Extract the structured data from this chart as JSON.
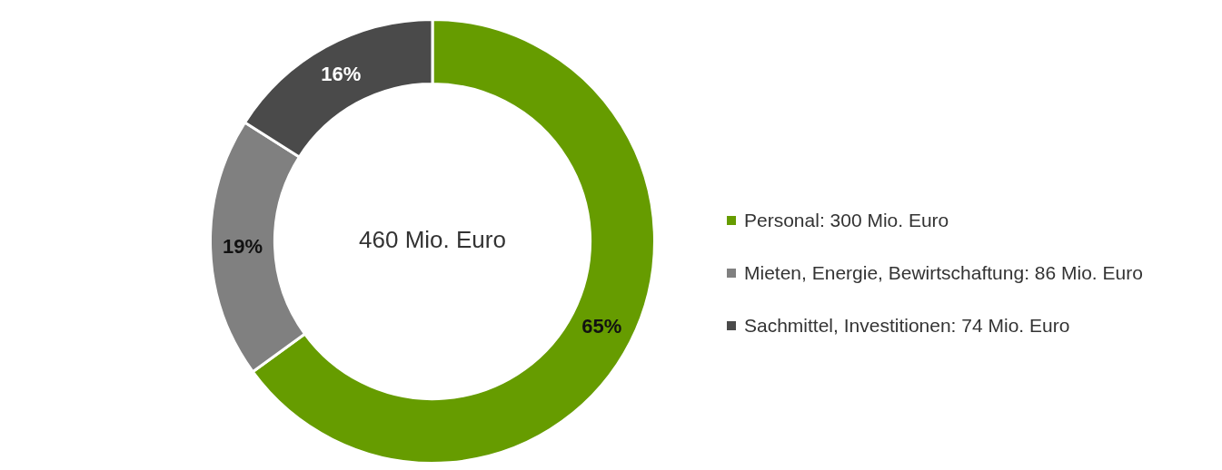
{
  "chart_data": {
    "type": "donut",
    "categories": [
      "Personal: 300 Mio. Euro",
      "Mieten, Energie, Bewirtschaftung: 86 Mio. Euro",
      "Sachmittel, Investitionen: 74 Mio. Euro"
    ],
    "values": [
      65,
      19,
      16
    ],
    "value_labels": [
      "65%",
      "19%",
      "16%"
    ],
    "colors": [
      "#669c00",
      "#808080",
      "#4a4a4a"
    ],
    "annotations": [
      "460 Mio. Euro"
    ],
    "legend": "right"
  }
}
